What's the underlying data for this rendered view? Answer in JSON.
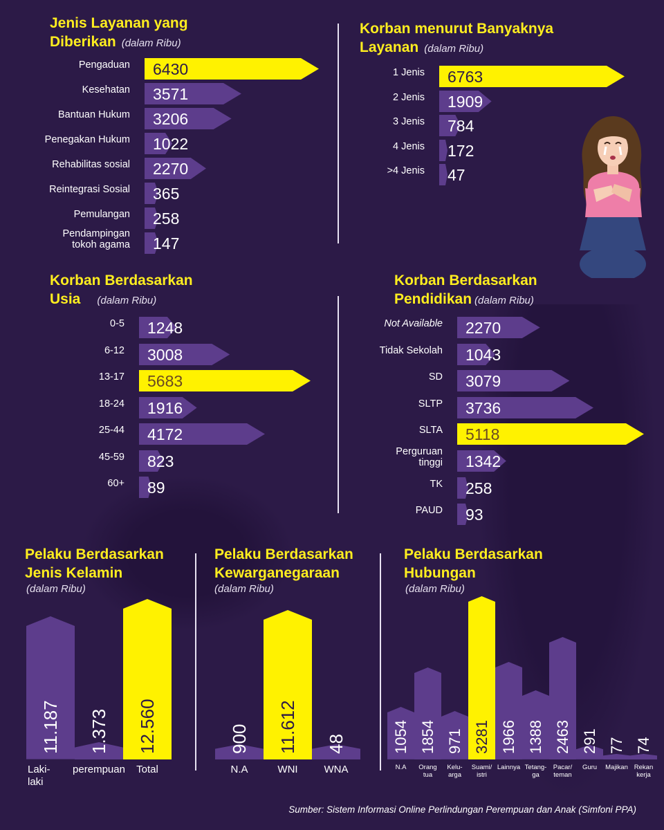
{
  "unit": "(dalam Ribu)",
  "source": "Sumber: Sistem Informasi Online Perlindungan Perempuan dan Anak (Simfoni PPA)",
  "colors": {
    "background": "#2c1a47",
    "bar": "#5d3d8c",
    "highlight": "#fff200",
    "title": "#ffee1f"
  },
  "chart_data": [
    {
      "type": "bar",
      "orientation": "horizontal",
      "title_lines": [
        "Jenis Layanan yang",
        "Diberikan"
      ],
      "categories": [
        "Pengaduan",
        "Kesehatan",
        "Bantuan Hukum",
        "Penegakan Hukum",
        "Rehabilitas sosial",
        "Reintegrasi Sosial",
        "Pemulangan",
        "Pendampingan tokoh agama"
      ],
      "labels": [
        "Pengaduan",
        "Kesehatan",
        "Bantuan Hukum",
        "Penegakan Hukum",
        "Rehabilitas sosial",
        "Reintegrasi Sosial",
        "Pemulangan",
        "Pendampingan\ntokoh agama"
      ],
      "values": [
        6430,
        3571,
        3206,
        1022,
        2270,
        365,
        258,
        147
      ],
      "display": [
        "6430",
        "3571",
        "3206",
        "1022",
        "2270",
        "365",
        "258",
        "147"
      ],
      "highlight": [
        0
      ]
    },
    {
      "type": "bar",
      "orientation": "horizontal",
      "title_lines": [
        "Korban menurut Banyaknya",
        "Layanan"
      ],
      "categories": [
        "1 Jenis",
        "2 Jenis",
        "3 Jenis",
        "4 Jenis",
        ">4 Jenis"
      ],
      "labels": [
        "1 Jenis",
        "2 Jenis",
        "3 Jenis",
        "4 Jenis",
        ">4 Jenis"
      ],
      "values": [
        6763,
        1909,
        784,
        172,
        47
      ],
      "display": [
        "6763",
        "1909",
        "784",
        "172",
        "47"
      ],
      "highlight": [
        0
      ]
    },
    {
      "type": "bar",
      "orientation": "horizontal",
      "title_lines": [
        "Korban Berdasarkan",
        "Usia"
      ],
      "categories": [
        "0-5",
        "6-12",
        "13-17",
        "18-24",
        "25-44",
        "45-59",
        "60+"
      ],
      "labels": [
        "0-5",
        "6-12",
        "13-17",
        "18-24",
        "25-44",
        "45-59",
        "60+"
      ],
      "values": [
        1248,
        3008,
        5683,
        1916,
        4172,
        823,
        89
      ],
      "display": [
        "1248",
        "3008",
        "5683",
        "1916",
        "4172",
        "823",
        "89"
      ],
      "highlight": [
        2
      ]
    },
    {
      "type": "bar",
      "orientation": "horizontal",
      "title_lines": [
        "Korban Berdasarkan",
        "Pendidikan"
      ],
      "categories": [
        "Not Available",
        "Tidak Sekolah",
        "SD",
        "SLTP",
        "SLTA",
        "Perguruan tinggi",
        "TK",
        "PAUD"
      ],
      "labels": [
        "Not Available",
        "Tidak Sekolah",
        "SD",
        "SLTP",
        "SLTA",
        "Perguruan\ntinggi",
        "TK",
        "PAUD"
      ],
      "values": [
        2270,
        1043,
        3079,
        3736,
        5118,
        1342,
        258,
        93
      ],
      "display": [
        "2270",
        "1043",
        "3079",
        "3736",
        "5118",
        "1342",
        "258",
        "93"
      ],
      "highlight": [
        4
      ]
    },
    {
      "type": "bar",
      "orientation": "vertical",
      "title_lines": [
        "Pelaku Berdasarkan",
        "Jenis Kelamin"
      ],
      "categories": [
        "Laki-laki",
        "perempuan",
        "Total"
      ],
      "labels": [
        "Laki-\nlaki",
        "perempuan",
        "Total"
      ],
      "values": [
        11187,
        1373,
        12560
      ],
      "display": [
        "11.187",
        "1.373",
        "12.560"
      ],
      "highlight": [
        2
      ]
    },
    {
      "type": "bar",
      "orientation": "vertical",
      "title_lines": [
        "Pelaku Berdasarkan",
        "Kewarganegaraan"
      ],
      "categories": [
        "N.A",
        "WNI",
        "WNA"
      ],
      "labels": [
        "N.A",
        "WNI",
        "WNA"
      ],
      "values": [
        900,
        11612,
        48
      ],
      "display": [
        "900",
        "11.612",
        "48"
      ],
      "highlight": [
        1
      ]
    },
    {
      "type": "bar",
      "orientation": "vertical",
      "title_lines": [
        "Pelaku Berdasarkan",
        "Hubungan"
      ],
      "categories": [
        "N.A",
        "Orang tua",
        "Keluarga",
        "Suami/istri",
        "Lainnya",
        "Tetangga",
        "Pacar/teman",
        "Guru",
        "Majikan",
        "Rekan kerja"
      ],
      "labels": [
        "N.A",
        "Orang\ntua",
        "Kelu-\narga",
        "Suami/\nistri",
        "Lainnya",
        "Tetang-\nga",
        "Pacar/\nteman",
        "Guru",
        "Majikan",
        "Rekan\nkerja"
      ],
      "values": [
        1054,
        1854,
        971,
        3281,
        1966,
        1388,
        2463,
        291,
        77,
        74
      ],
      "display": [
        "1054",
        "1854",
        "971",
        "3281",
        "1966",
        "1388",
        "2463",
        "291",
        "77",
        "74"
      ],
      "highlight": [
        3
      ]
    }
  ]
}
